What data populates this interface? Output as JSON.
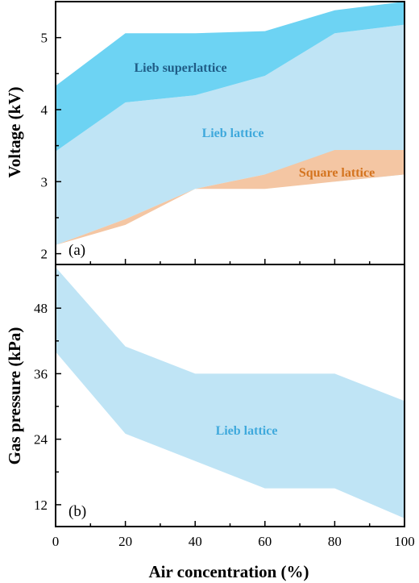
{
  "colors": {
    "lieb_superlattice": "#6dd3f3",
    "lieb_lattice": "#bfe4f5",
    "square_lattice": "#f4c6a3",
    "lieb_superlattice_text": "#1f5c86",
    "lieb_lattice_text": "#3fa9dc",
    "square_lattice_text": "#d4741f"
  },
  "chart_data": [
    {
      "type": "area",
      "panel": "(a)",
      "ylabel": "Voltage (kV)",
      "xlim": [
        0,
        100
      ],
      "ylim": [
        1.85,
        5.5
      ],
      "yticks": [
        2,
        3,
        4,
        5
      ],
      "x": [
        0,
        20,
        40,
        60,
        80,
        100
      ],
      "series": [
        {
          "name": "Lieb superlattice",
          "lower": [
            3.42,
            4.1,
            4.2,
            4.47,
            5.06,
            5.18
          ],
          "upper": [
            4.33,
            5.06,
            5.06,
            5.09,
            5.38,
            5.5
          ]
        },
        {
          "name": "Lieb lattice",
          "lower": [
            2.12,
            2.48,
            2.9,
            3.1,
            3.0,
            3.1
          ],
          "upper": [
            3.42,
            4.1,
            4.2,
            4.47,
            5.06,
            5.18
          ]
        },
        {
          "name": "Square lattice",
          "lower": [
            2.12,
            2.4,
            2.9,
            2.9,
            3.0,
            3.1
          ],
          "upper": [
            2.12,
            2.48,
            2.9,
            3.1,
            3.44,
            3.44
          ]
        }
      ]
    },
    {
      "type": "area",
      "panel": "(b)",
      "xlabel": "Air concentration (%)",
      "ylabel": "Gas pressure (kPa)",
      "xlim": [
        0,
        100
      ],
      "ylim": [
        8,
        56
      ],
      "xticks": [
        0,
        20,
        40,
        60,
        80,
        100
      ],
      "yticks": [
        12,
        24,
        36,
        48
      ],
      "x": [
        0,
        20,
        40,
        60,
        80,
        100
      ],
      "series": [
        {
          "name": "Lieb lattice",
          "lower": [
            40,
            25,
            20,
            15,
            15,
            9.5
          ],
          "upper": [
            55.5,
            41,
            36,
            36,
            36,
            31
          ]
        }
      ]
    }
  ]
}
